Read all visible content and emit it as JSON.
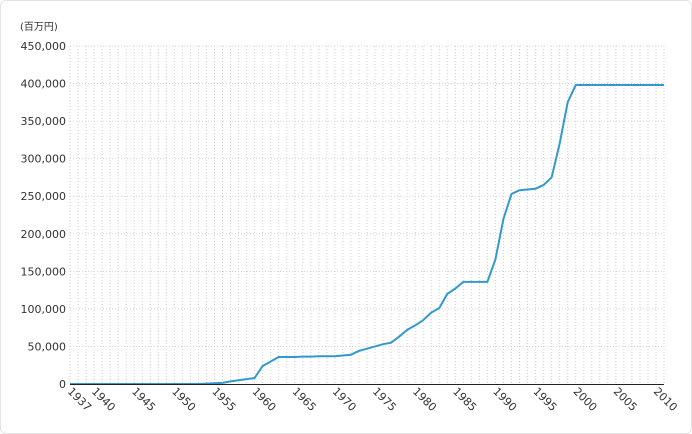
{
  "chart_data": {
    "type": "line",
    "unit_label": "(百万円)",
    "title": "",
    "xlabel": "",
    "ylabel": "",
    "xlim": [
      1937,
      2011
    ],
    "ylim": [
      0,
      450000
    ],
    "y_ticks": [
      0,
      50000,
      100000,
      150000,
      200000,
      250000,
      300000,
      350000,
      400000,
      450000
    ],
    "y_tick_labels": [
      "0",
      "50,000",
      "100,000",
      "150,000",
      "200,000",
      "250,000",
      "300,000",
      "350,000",
      "400,000",
      "450,000"
    ],
    "x_ticks": [
      1937,
      1940,
      1945,
      1950,
      1955,
      1960,
      1965,
      1970,
      1975,
      1980,
      1985,
      1990,
      1995,
      2000,
      2005,
      2010
    ],
    "x_tick_labels": [
      "1937",
      "1940",
      "1945",
      "1950",
      "1955",
      "1960",
      "1965",
      "1970",
      "1975",
      "1980",
      "1985",
      "1990",
      "1995",
      "2000",
      "2005",
      "2010"
    ],
    "grid": true,
    "line_color": "#3399cc",
    "series": [
      {
        "x": [
          1937,
          1940,
          1945,
          1950,
          1953,
          1955,
          1956,
          1957,
          1958,
          1959,
          1960,
          1961,
          1962,
          1963,
          1964,
          1965,
          1966,
          1967,
          1968,
          1969,
          1970,
          1971,
          1972,
          1973,
          1974,
          1975,
          1976,
          1977,
          1978,
          1979,
          1980,
          1981,
          1982,
          1983,
          1984,
          1985,
          1986,
          1987,
          1988,
          1989,
          1990,
          1991,
          1992,
          1993,
          1994,
          1995,
          1996,
          1997,
          1998,
          1999,
          2000,
          2005,
          2010,
          2011
        ],
        "y": [
          0,
          0,
          0,
          0,
          0,
          1000,
          1500,
          3500,
          5000,
          6500,
          8000,
          24000,
          30000,
          36000,
          36000,
          36000,
          36500,
          36500,
          37000,
          37000,
          37000,
          38000,
          39000,
          44000,
          47000,
          50000,
          53000,
          55000,
          63000,
          72000,
          78000,
          85000,
          95000,
          101000,
          120000,
          127000,
          136000,
          136000,
          136000,
          136000,
          166000,
          220000,
          253000,
          258000,
          259000,
          260000,
          265000,
          275000,
          320000,
          375000,
          398000,
          398000,
          398000,
          398000
        ]
      }
    ]
  }
}
